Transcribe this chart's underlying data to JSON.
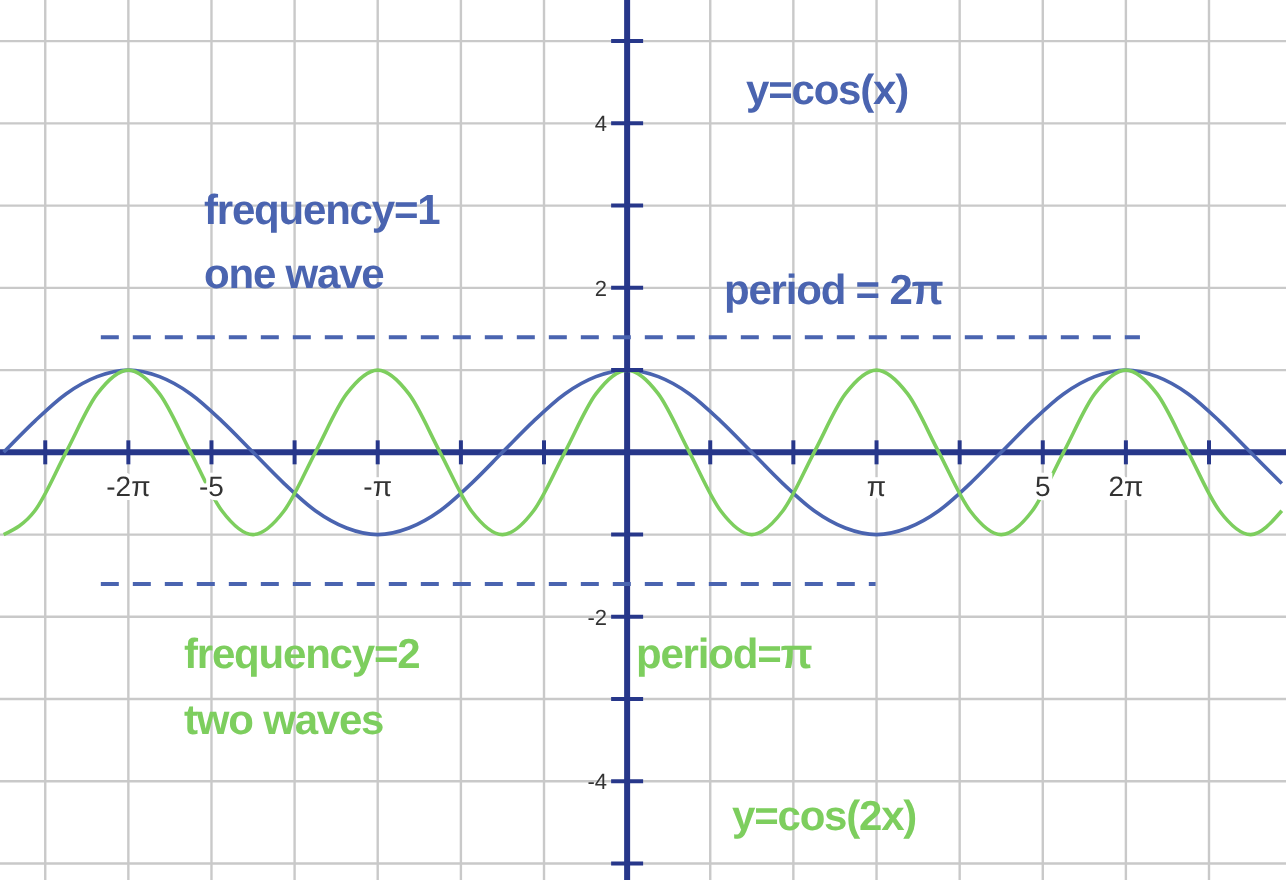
{
  "chart_data": {
    "type": "line",
    "x": [
      -7.854,
      -7.461,
      -7.069,
      -6.676,
      -6.283,
      -5.89,
      -5.498,
      -5.105,
      -4.712,
      -4.32,
      -3.927,
      -3.534,
      -3.142,
      -2.749,
      -2.356,
      -1.963,
      -1.571,
      -1.178,
      -0.785,
      -0.393,
      0,
      0.393,
      0.785,
      1.178,
      1.571,
      1.963,
      2.356,
      2.749,
      3.142,
      3.534,
      3.927,
      4.32,
      4.712,
      5.105,
      5.498,
      5.89,
      6.283,
      6.676,
      7.069,
      7.461,
      7.854,
      8.247
    ],
    "series": [
      {
        "color": "#4a64b0",
        "line_style": "solid",
        "values": [
          0,
          0.38,
          0.71,
          0.92,
          1,
          0.92,
          0.71,
          0.38,
          0,
          -0.38,
          -0.71,
          -0.92,
          -1,
          -0.92,
          -0.71,
          -0.38,
          0,
          0.38,
          0.71,
          0.92,
          1,
          0.92,
          0.71,
          0.38,
          0,
          -0.38,
          -0.71,
          -0.92,
          -1,
          -0.92,
          -0.71,
          -0.38,
          0,
          0.38,
          0.71,
          0.92,
          1,
          0.92,
          0.71,
          0.38,
          0,
          -0.38
        ]
      },
      {
        "color": "#7dce5e",
        "line_style": "solid",
        "values": [
          -1,
          -0.71,
          0,
          0.71,
          1,
          0.71,
          0,
          -0.71,
          -1,
          -0.71,
          0,
          0.71,
          1,
          0.71,
          0,
          -0.71,
          -1,
          -0.71,
          0,
          0.71,
          1,
          0.71,
          0,
          -0.71,
          -1,
          -0.71,
          0,
          0.71,
          1,
          0.71,
          0,
          -0.71,
          -1,
          -0.71,
          0,
          0.71,
          1,
          0.71,
          0,
          -0.71,
          -1,
          -0.71
        ]
      },
      {
        "color": "#4a64b0",
        "line_style": "dashed",
        "x": [
          -6.63,
          6.46
        ],
        "values": [
          1.4,
          1.4
        ]
      },
      {
        "color": "#4a64b0",
        "line_style": "dashed",
        "x": [
          -6.63,
          3.13
        ],
        "values": [
          -1.6,
          -1.6
        ]
      }
    ],
    "xlim": [
      -7.9,
      8.3
    ],
    "xticks": [
      {
        "value": -7.33,
        "label": null
      },
      {
        "value": -6.283,
        "label": "-2π"
      },
      {
        "value": -5.236,
        "label": "-5"
      },
      {
        "value": -4.189,
        "label": null
      },
      {
        "value": -3.142,
        "label": "-π"
      },
      {
        "value": -2.094,
        "label": null
      },
      {
        "value": -1.047,
        "label": null
      },
      {
        "value": 1.047,
        "label": null
      },
      {
        "value": 2.094,
        "label": null
      },
      {
        "value": 3.142,
        "label": "π"
      },
      {
        "value": 4.189,
        "label": null
      },
      {
        "value": 5.236,
        "label": "5"
      },
      {
        "value": 6.283,
        "label": "2π"
      },
      {
        "value": 7.33,
        "label": null
      }
    ],
    "ylim": [
      -5.2,
      5.5
    ],
    "yticks": [
      {
        "value": -5,
        "label": null
      },
      -4,
      {
        "value": -3,
        "label": null
      },
      -2,
      {
        "value": -1,
        "label": null
      },
      {
        "value": 1,
        "label": null
      },
      2,
      {
        "value": 3,
        "label": null
      },
      4,
      {
        "value": 5,
        "label": null
      }
    ],
    "grid": true,
    "marker": "none",
    "annotations": [
      "y=cos(x)",
      "frequency=1",
      "one wave",
      "period = 2π",
      "frequency=2",
      "two waves",
      "period=π",
      "y=cos(2x)"
    ]
  }
}
